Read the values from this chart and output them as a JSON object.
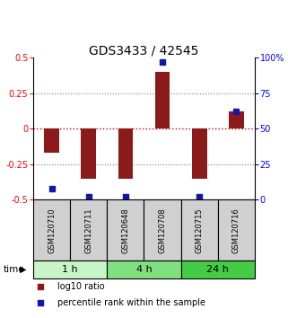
{
  "title": "GDS3433 / 42545",
  "samples": [
    "GSM120710",
    "GSM120711",
    "GSM120648",
    "GSM120708",
    "GSM120715",
    "GSM120716"
  ],
  "log10_ratio": [
    -0.17,
    -0.35,
    -0.35,
    0.4,
    -0.35,
    0.12
  ],
  "percentile_rank": [
    8,
    2,
    2,
    97,
    2,
    62
  ],
  "ylim_left": [
    -0.5,
    0.5
  ],
  "ylim_right": [
    0,
    100
  ],
  "yticks_left": [
    -0.5,
    -0.25,
    0,
    0.25,
    0.5
  ],
  "ytick_labels_left": [
    "-0.5",
    "-0.25",
    "0",
    "0.25",
    "0.5"
  ],
  "yticks_right": [
    0,
    25,
    50,
    75,
    100
  ],
  "ytick_labels_right": [
    "0",
    "25",
    "50",
    "75",
    "100%"
  ],
  "bar_color": "#8B1A1A",
  "square_color": "#1515AA",
  "zero_line_color": "#CC0000",
  "grid_color": "#808080",
  "time_groups": [
    {
      "label": "1 h",
      "samples": [
        0,
        1
      ],
      "color": "#c8f5c8"
    },
    {
      "label": "4 h",
      "samples": [
        2,
        3
      ],
      "color": "#80e080"
    },
    {
      "label": "24 h",
      "samples": [
        4,
        5
      ],
      "color": "#44cc44"
    }
  ],
  "legend_items": [
    {
      "label": "log10 ratio",
      "color": "#8B1A1A"
    },
    {
      "label": "percentile rank within the sample",
      "color": "#1515AA"
    }
  ],
  "xlabel_time": "time",
  "title_fontsize": 10,
  "tick_fontsize": 7,
  "sample_label_fontsize": 6,
  "time_fontsize": 8,
  "legend_fontsize": 7
}
